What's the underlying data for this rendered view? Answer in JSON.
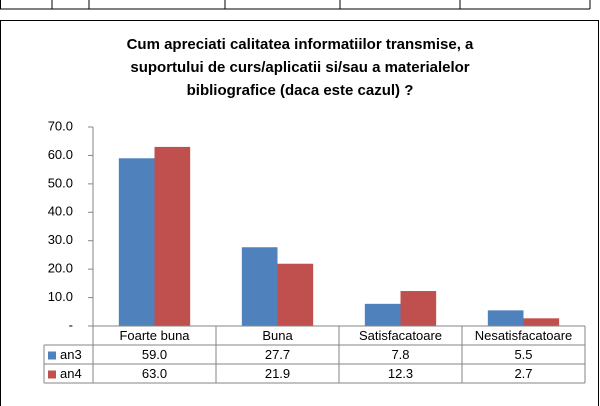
{
  "chart_data": {
    "type": "bar",
    "title": [
      "Cum apreciati calitatea informatiilor transmise, a",
      "suportului de curs/aplicatii si/sau a materialelor",
      "bibliografice (daca este cazul) ?"
    ],
    "categories": [
      "Foarte buna",
      "Buna",
      "Satisfacatoare",
      "Nesatisfacatoare"
    ],
    "series": [
      {
        "name": "an3",
        "color": "#4f81bd",
        "values": [
          59.0,
          27.7,
          7.8,
          5.5
        ],
        "value_labels": [
          "59.0",
          "27.7",
          "7.8",
          "5.5"
        ]
      },
      {
        "name": "an4",
        "color": "#c0504d",
        "values": [
          63.0,
          21.9,
          12.3,
          2.7
        ],
        "value_labels": [
          "63.0",
          "21.9",
          "12.3",
          "2.7"
        ]
      }
    ],
    "ylim": [
      0,
      70
    ],
    "yticks": [
      {
        "value": 0,
        "label": "-"
      },
      {
        "value": 10,
        "label": "10.0"
      },
      {
        "value": 20,
        "label": "20.0"
      },
      {
        "value": 30,
        "label": "30.0"
      },
      {
        "value": 40,
        "label": "40.0"
      },
      {
        "value": 50,
        "label": "50.0"
      },
      {
        "value": 60,
        "label": "60.0"
      },
      {
        "value": 70,
        "label": "70.0"
      }
    ],
    "grid": false,
    "data_table": true
  }
}
